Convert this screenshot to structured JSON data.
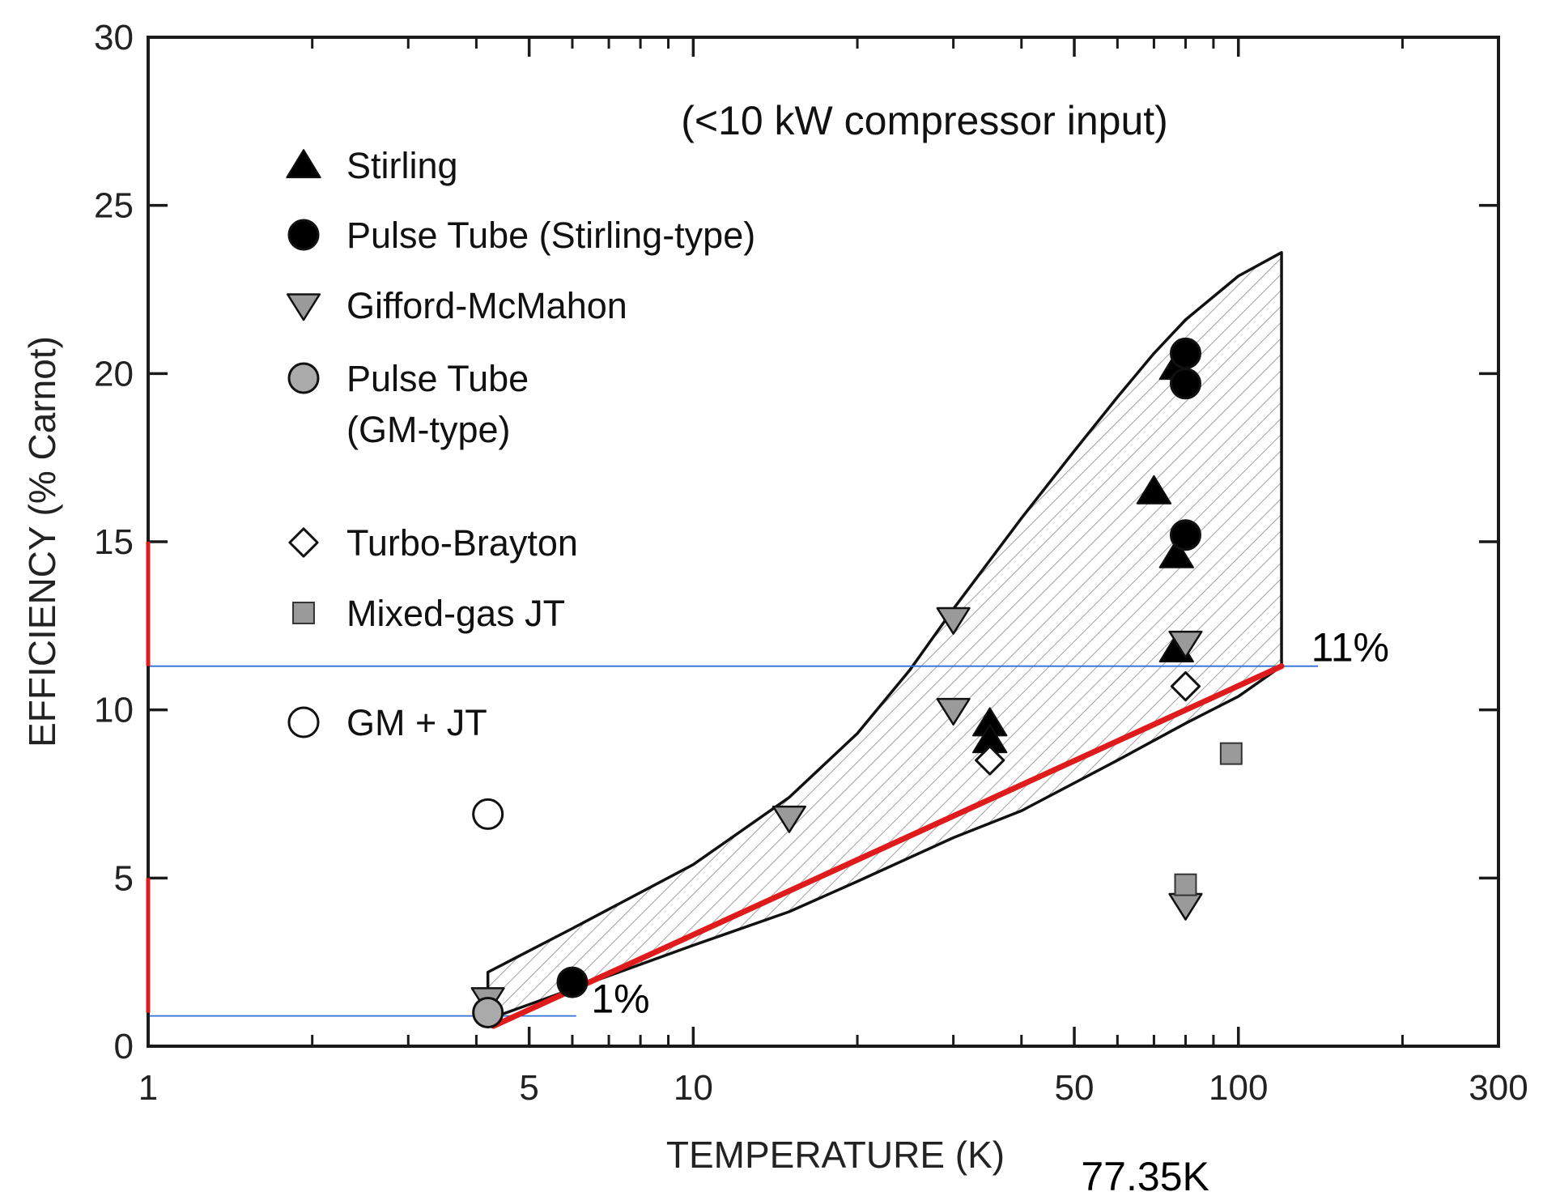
{
  "chart_data": {
    "type": "scatter",
    "xlabel": "TEMPERATURE (K)",
    "ylabel": "EFFICIENCY (% Carnot)",
    "xscale": "log",
    "xlim": [
      1,
      300
    ],
    "ylim": [
      0,
      30
    ],
    "x_tick_labels": [
      {
        "value": 1,
        "label": "1"
      },
      {
        "value": 5,
        "label": "5"
      },
      {
        "value": 10,
        "label": "10"
      },
      {
        "value": 50,
        "label": "50"
      },
      {
        "value": 100,
        "label": "100"
      },
      {
        "value": 300,
        "label": "300"
      }
    ],
    "x_minor_ticks": [
      2,
      3,
      4,
      6,
      7,
      8,
      9,
      20,
      30,
      40,
      60,
      70,
      80,
      90,
      200
    ],
    "y_ticks": [
      0,
      5,
      10,
      15,
      20,
      25,
      30
    ],
    "note": "(<10 kW compressor input)",
    "legend": [
      {
        "key": "stirling",
        "label": "Stirling",
        "marker": "triangle-up",
        "fill": "#000000"
      },
      {
        "key": "pt_stirling",
        "label": "Pulse Tube (Stirling-type)",
        "marker": "circle",
        "fill": "#000000"
      },
      {
        "key": "gm",
        "label": "Gifford-McMahon",
        "marker": "triangle-down",
        "fill": "#9a9a9a"
      },
      {
        "key": "pt_gm",
        "label": "Pulse Tube",
        "label2": "(GM-type)",
        "marker": "circle",
        "fill": "#aaaaaa"
      },
      {
        "key": "turbo",
        "label": "Turbo-Brayton",
        "marker": "diamond",
        "fill": "#ffffff"
      },
      {
        "key": "mgjt",
        "label": "Mixed-gas JT",
        "marker": "square",
        "fill": "#9a9a9a"
      },
      {
        "key": "gmjt",
        "label": "GM + JT",
        "marker": "circle",
        "fill": "#ffffff"
      }
    ],
    "series": [
      {
        "name": "Stirling",
        "key": "stirling",
        "points": [
          [
            77,
            20.2
          ],
          [
            77,
            14.6
          ],
          [
            77,
            11.8
          ],
          [
            70,
            16.5
          ],
          [
            35,
            9.6
          ],
          [
            35,
            9.1
          ]
        ]
      },
      {
        "name": "Pulse Tube (Stirling-type)",
        "key": "pt_stirling",
        "points": [
          [
            80,
            20.6
          ],
          [
            80,
            19.7
          ],
          [
            80,
            15.2
          ],
          [
            6,
            1.9
          ]
        ]
      },
      {
        "name": "Gifford-McMahon",
        "key": "gm",
        "points": [
          [
            30,
            12.7
          ],
          [
            30,
            10.0
          ],
          [
            15,
            6.8
          ],
          [
            80,
            12.0
          ],
          [
            80,
            4.2
          ],
          [
            4.2,
            1.4
          ]
        ]
      },
      {
        "name": "Pulse Tube (GM-type)",
        "key": "pt_gm",
        "points": [
          [
            4.2,
            1.0
          ]
        ]
      },
      {
        "name": "Turbo-Brayton",
        "key": "turbo",
        "points": [
          [
            80,
            10.7
          ],
          [
            35,
            8.5
          ]
        ]
      },
      {
        "name": "Mixed-gas JT",
        "key": "mgjt",
        "points": [
          [
            97,
            8.7
          ],
          [
            80,
            4.8
          ]
        ]
      },
      {
        "name": "GM + JT",
        "key": "gmjt",
        "points": [
          [
            4.2,
            6.9
          ]
        ]
      }
    ],
    "envelope": {
      "upper": [
        [
          4.2,
          2.2
        ],
        [
          6,
          3.5
        ],
        [
          10,
          5.4
        ],
        [
          15,
          7.4
        ],
        [
          20,
          9.3
        ],
        [
          25,
          11.2
        ],
        [
          30,
          13.0
        ],
        [
          40,
          15.7
        ],
        [
          50,
          17.7
        ],
        [
          60,
          19.3
        ],
        [
          70,
          20.6
        ],
        [
          80,
          21.6
        ],
        [
          100,
          22.9
        ],
        [
          120,
          23.6
        ]
      ],
      "right_edge": [
        [
          120,
          23.6
        ],
        [
          120,
          11.3
        ]
      ],
      "lower": [
        [
          120,
          11.3
        ],
        [
          100,
          10.4
        ],
        [
          80,
          9.6
        ],
        [
          60,
          8.5
        ],
        [
          40,
          7.0
        ],
        [
          30,
          6.2
        ],
        [
          20,
          4.9
        ],
        [
          15,
          4.0
        ],
        [
          10,
          3.0
        ],
        [
          6,
          1.7
        ],
        [
          4.2,
          0.8
        ]
      ]
    },
    "red_line": {
      "from": [
        4.3,
        0.6
      ],
      "to": [
        120,
        11.3
      ]
    },
    "hlines": [
      {
        "y": 11.3,
        "x_from": 1,
        "x_to": 140,
        "label": "11%",
        "label_x": 136
      },
      {
        "y": 0.9,
        "x_from": 0.98,
        "x_to": 6.1,
        "label": "1%",
        "label_x": 6.5
      }
    ],
    "red_axis_segments": [
      [
        1,
        5
      ],
      [
        11.3,
        15
      ]
    ],
    "annotations": [
      {
        "text": "77.35K",
        "x": 77.35
      }
    ]
  }
}
